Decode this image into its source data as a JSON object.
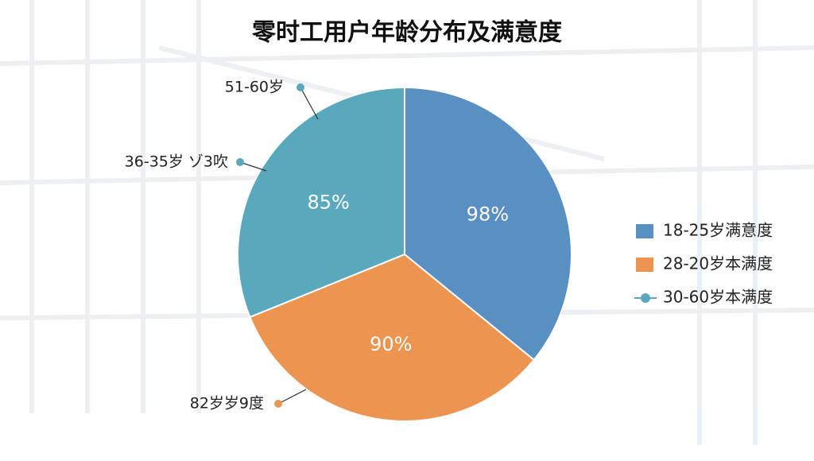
{
  "chart_data": {
    "type": "pie",
    "title": "零时工用户年龄分布及满意度",
    "categories": [
      "18-25岁满意度",
      "28-20岁本满度",
      "30-60岁本满度"
    ],
    "colors": [
      "#5a8fc4",
      "#ec9550",
      "#5aa8bd"
    ],
    "values": [
      98,
      90,
      85
    ],
    "value_labels": [
      "98%",
      "90%",
      "85%"
    ],
    "annotations": [
      "51-60岁",
      "36-35岁 ゾ3吹",
      "82岁岁9度"
    ]
  }
}
